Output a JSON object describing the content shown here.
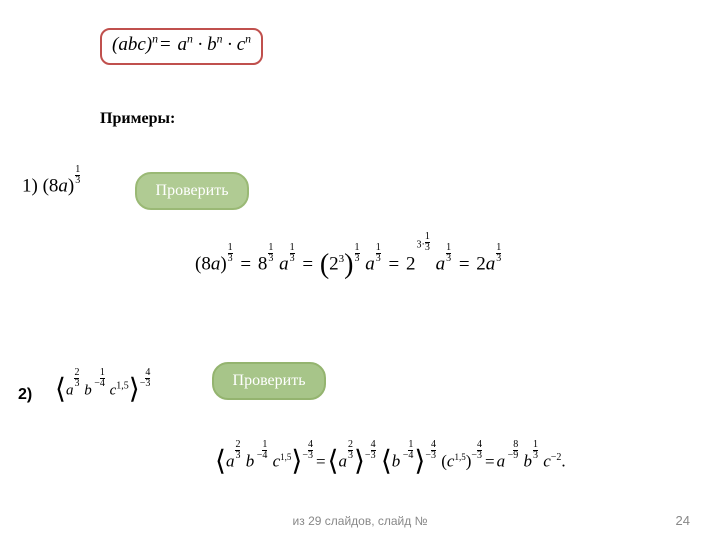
{
  "formula": {
    "html": "(<i>abc</i>)<sup>n</sup><span class='op'>=</span> <i>a</i><sup>n</sup> · <i>b</i><sup>n</sup> · <i>c</i><sup>n</sup>",
    "border_color": "#c0504d"
  },
  "labels": {
    "examples": "Примеры:",
    "ex2": "2)"
  },
  "buttons": {
    "check1": "Проверить",
    "check2": "Проверить",
    "bg1": "#b0cb93",
    "bg2": "#a7c589"
  },
  "footer": {
    "text": "из 29 слайдов, слайд №",
    "page": "24"
  },
  "math": {
    "ex1": "<span class='upright'>1) (8</span>a<span class='upright'>)</span><span class='supfrac'><span class='n'>1</span><span class='d'>3</span></span>",
    "sol1": "<span class='upright'>(8</span>a<span class='upright'>)</span><span class='supfrac'><span class='n'>1</span><span class='d'>3</span></span> <span class='op'>=</span> <span class='upright'>8</span><span class='supfrac'><span class='n'>1</span><span class='d'>3</span></span> a<span class='supfrac'><span class='n'>1</span><span class='d'>3</span></span> <span class='op'>=</span> <span class='big-paren'>(</span><span class='upright'>2</span><sup class='upright' style='font-size:11px;'>3</sup><span class='big-paren'>)</span><span class='supfrac'><span class='n'>1</span><span class='d'>3</span></span> a<span class='supfrac'><span class='n'>1</span><span class='d'>3</span></span> <span class='op'>=</span> <span class='upright'>2</span><span class='supfrac'><span class='n'>3·<span style=\"display:inline-block;vertical-align:-0.25em;text-align:center;line-height:1;\"><span style=\"display:block;\">1</span><span style=\"display:block;border-top:1px solid #000;\">3</span></span></span><span class='d' style='visibility:hidden;'>3</span></span> a<span class='supfrac'><span class='n'>1</span><span class='d'>3</span></span> <span class='op'>=</span> <span class='upright'>2</span>a<span class='supfrac'><span class='n'>1</span><span class='d'>3</span></span>",
    "ex2": "<span class='ang'>⟨</span>a<span class='supfrac'><span class='n'>2</span><span class='d'>3</span></span> b<span class='supneg'>&nbsp;−</span><span class='supfrac'><span class='n'>1</span><span class='d'>4</span></span> c<sup class='upright' style='font-size:10px;'>1,5</sup><span class='ang'>⟩</span><span class='supneg'>−</span><span class='supfrac'><span class='n'>4</span><span class='d'>3</span></span>",
    "sol2": "<span class='ang'>⟨</span>a<span class='supfrac'><span class='n'>2</span><span class='d'>3</span></span> b<span class='supneg'>&nbsp;−</span><span class='supfrac'><span class='n'>1</span><span class='d'>4</span></span> c<sup class='upright' style='font-size:9px;'>1,5</sup><span class='ang'>⟩</span><span class='supneg'>−</span><span class='supfrac'><span class='n'>4</span><span class='d'>3</span></span><span class='op'>=</span><span class='ang'>⟨</span>a<span class='supfrac'><span class='n'>2</span><span class='d'>3</span></span><span class='ang'>⟩</span><span class='supneg'>−</span><span class='supfrac'><span class='n'>4</span><span class='d'>3</span></span> <span class='ang'>⟨</span>b<span class='supneg'>&nbsp;−</span><span class='supfrac'><span class='n'>1</span><span class='d'>4</span></span><span class='ang'>⟩</span><span class='supneg'>−</span><span class='supfrac'><span class='n'>4</span><span class='d'>3</span></span> <span class='upright'>(</span>c<sup class='upright' style='font-size:9px;'>1,5</sup><span class='upright'>)</span><span class='supneg'>−</span><span class='supfrac'><span class='n'>4</span><span class='d'>3</span></span><span class='op'>=</span>a<span class='supneg'>&nbsp;−</span><span class='supfrac'><span class='n'>8</span><span class='d'>9</span></span> b<span class='supfrac'><span class='n'>1</span><span class='d'>3</span></span> c<sup class='upright' style='font-size:10px;'>−2</sup><span class='upright'>.</span>"
  }
}
